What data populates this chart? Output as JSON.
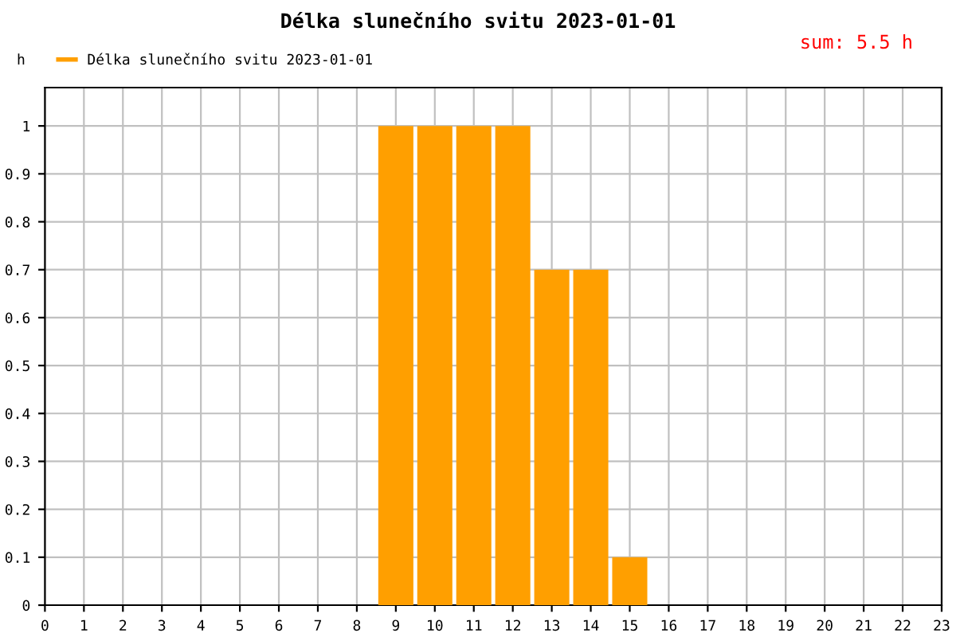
{
  "chart_data": {
    "type": "bar",
    "title": "Délka slunečního svitu 2023-01-01",
    "ylabel": "h",
    "annotations": [
      "sum: 5.5 h"
    ],
    "x": [
      9,
      10,
      11,
      12,
      13,
      14,
      15
    ],
    "series": [
      {
        "name": "Délka slunečního svitu 2023-01-01",
        "color": "#ff9f00",
        "values": [
          1,
          1,
          1,
          1,
          0.7,
          0.7,
          0.1
        ]
      }
    ],
    "xlim": [
      0,
      23
    ],
    "xticks": [
      0,
      1,
      2,
      3,
      4,
      5,
      6,
      7,
      8,
      9,
      10,
      11,
      12,
      13,
      14,
      15,
      16,
      17,
      18,
      19,
      20,
      21,
      22,
      23
    ],
    "ylim": [
      0,
      1.08
    ],
    "yticks": [
      0,
      0.1,
      0.2,
      0.3,
      0.4,
      0.5,
      0.6,
      0.7,
      0.8,
      0.9,
      1
    ],
    "grid": true,
    "legend": "top left"
  }
}
